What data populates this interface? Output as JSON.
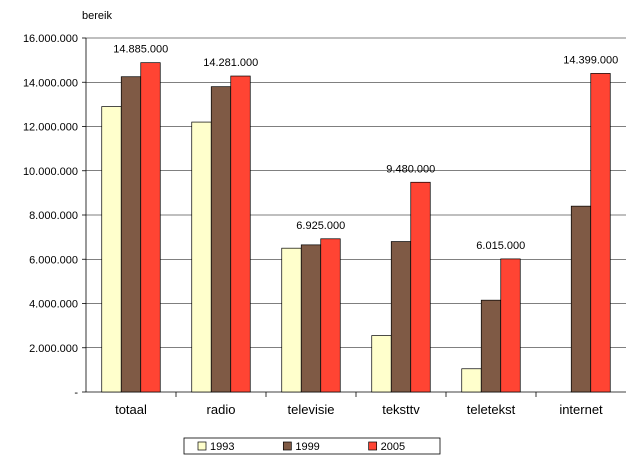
{
  "chart_data": {
    "type": "bar",
    "title": "",
    "xlabel": "",
    "ylabel": "bereik",
    "ylim": [
      0,
      16000000
    ],
    "yticks": [
      0,
      2000000,
      4000000,
      6000000,
      8000000,
      10000000,
      12000000,
      14000000,
      16000000
    ],
    "ytick_labels": [
      "-",
      "2.000.000",
      "4.000.000",
      "6.000.000",
      "8.000.000",
      "10.000.000",
      "12.000.000",
      "14.000.000",
      "16.000.000"
    ],
    "grid": true,
    "legend_position": "bottom",
    "categories": [
      "totaal",
      "radio",
      "televisie",
      "teksttv",
      "teletekst",
      "internet"
    ],
    "series": [
      {
        "name": "1993",
        "color": "#FFFFCC",
        "values": [
          12900000,
          12200000,
          6500000,
          2550000,
          1050000,
          0
        ]
      },
      {
        "name": "1999",
        "color": "#7F5A45",
        "values": [
          14250000,
          13800000,
          6650000,
          6800000,
          4150000,
          8400000
        ]
      },
      {
        "name": "2005",
        "color": "#FF4433",
        "values": [
          14885000,
          14281000,
          6925000,
          9480000,
          6015000,
          14399000
        ]
      }
    ],
    "annotations": [
      {
        "category": "totaal",
        "series": "2005",
        "text": "14.885.000"
      },
      {
        "category": "radio",
        "series": "2005",
        "text": "14.281.000"
      },
      {
        "category": "televisie",
        "series": "2005",
        "text": "6.925.000"
      },
      {
        "category": "teksttv",
        "series": "2005",
        "text": "9.480.000"
      },
      {
        "category": "teletekst",
        "series": "2005",
        "text": "6.015.000"
      },
      {
        "category": "internet",
        "series": "2005",
        "text": "14.399.000"
      }
    ]
  }
}
